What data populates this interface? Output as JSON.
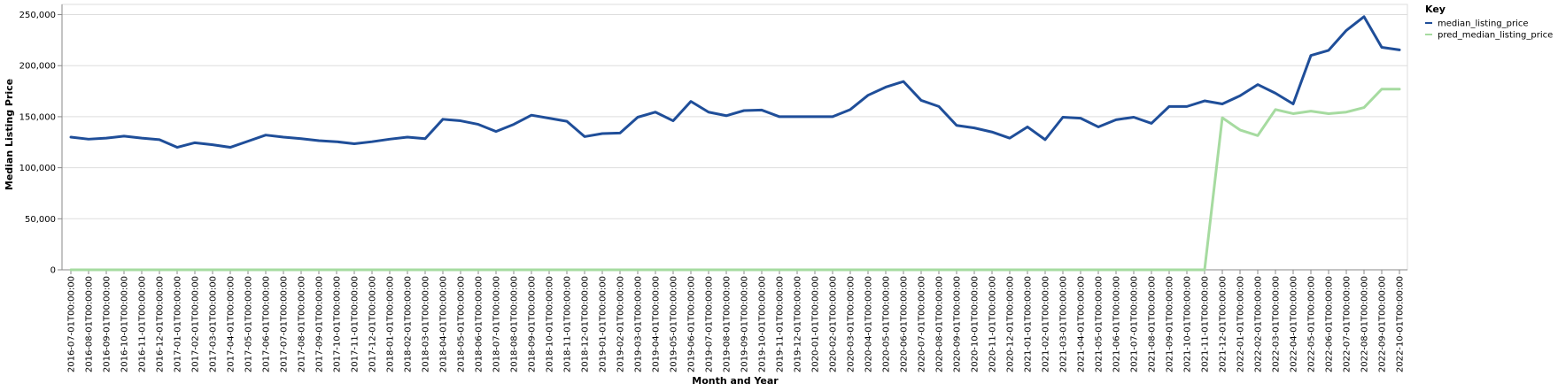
{
  "chart_data": {
    "type": "line",
    "xlabel": "Month and Year",
    "ylabel": "Median Listing Price",
    "ylim": [
      0,
      260000
    ],
    "yticks": [
      0,
      50000,
      100000,
      150000,
      200000,
      250000
    ],
    "grid": true,
    "legend": {
      "title": "Key",
      "placement": "top-right"
    },
    "x": [
      "2016-07-01T00:00:00",
      "2016-08-01T00:00:00",
      "2016-09-01T00:00:00",
      "2016-10-01T00:00:00",
      "2016-11-01T00:00:00",
      "2016-12-01T00:00:00",
      "2017-01-01T00:00:00",
      "2017-02-01T00:00:00",
      "2017-03-01T00:00:00",
      "2017-04-01T00:00:00",
      "2017-05-01T00:00:00",
      "2017-06-01T00:00:00",
      "2017-07-01T00:00:00",
      "2017-08-01T00:00:00",
      "2017-09-01T00:00:00",
      "2017-10-01T00:00:00",
      "2017-11-01T00:00:00",
      "2017-12-01T00:00:00",
      "2018-01-01T00:00:00",
      "2018-02-01T00:00:00",
      "2018-03-01T00:00:00",
      "2018-04-01T00:00:00",
      "2018-05-01T00:00:00",
      "2018-06-01T00:00:00",
      "2018-07-01T00:00:00",
      "2018-08-01T00:00:00",
      "2018-09-01T00:00:00",
      "2018-10-01T00:00:00",
      "2018-11-01T00:00:00",
      "2018-12-01T00:00:00",
      "2019-01-01T00:00:00",
      "2019-02-01T00:00:00",
      "2019-03-01T00:00:00",
      "2019-04-01T00:00:00",
      "2019-05-01T00:00:00",
      "2019-06-01T00:00:00",
      "2019-07-01T00:00:00",
      "2019-08-01T00:00:00",
      "2019-09-01T00:00:00",
      "2019-10-01T00:00:00",
      "2019-11-01T00:00:00",
      "2019-12-01T00:00:00",
      "2020-01-01T00:00:00",
      "2020-02-01T00:00:00",
      "2020-03-01T00:00:00",
      "2020-04-01T00:00:00",
      "2020-05-01T00:00:00",
      "2020-06-01T00:00:00",
      "2020-07-01T00:00:00",
      "2020-08-01T00:00:00",
      "2020-09-01T00:00:00",
      "2020-10-01T00:00:00",
      "2020-11-01T00:00:00",
      "2020-12-01T00:00:00",
      "2021-01-01T00:00:00",
      "2021-02-01T00:00:00",
      "2021-03-01T00:00:00",
      "2021-04-01T00:00:00",
      "2021-05-01T00:00:00",
      "2021-06-01T00:00:00",
      "2021-07-01T00:00:00",
      "2021-08-01T00:00:00",
      "2021-09-01T00:00:00",
      "2021-10-01T00:00:00",
      "2021-11-01T00:00:00",
      "2021-12-01T00:00:00",
      "2022-01-01T00:00:00",
      "2022-02-01T00:00:00",
      "2022-03-01T00:00:00",
      "2022-04-01T00:00:00",
      "2022-05-01T00:00:00",
      "2022-06-01T00:00:00",
      "2022-07-01T00:00:00",
      "2022-08-01T00:00:00",
      "2022-09-01T00:00:00",
      "2022-10-01T00:00:00"
    ],
    "series": [
      {
        "name": "median_listing_price",
        "color": "#1f4e99",
        "values": [
          130000,
          128000,
          129000,
          131000,
          129000,
          127500,
          120000,
          124500,
          122500,
          120000,
          126000,
          132000,
          130000,
          128500,
          126500,
          125500,
          123500,
          125500,
          128000,
          130000,
          128500,
          147500,
          146000,
          142500,
          135500,
          142500,
          151500,
          148500,
          145500,
          130500,
          133500,
          134000,
          149500,
          154500,
          146000,
          165000,
          154500,
          151000,
          156000,
          156500,
          150000,
          150000,
          150000,
          150000,
          157000,
          171000,
          179000,
          184500,
          166000,
          160000,
          141500,
          139000,
          135000,
          129000,
          140000,
          127500,
          149500,
          148500,
          140000,
          147000,
          149500,
          143500,
          160000,
          160000,
          165500,
          162500,
          170500,
          181500,
          173000,
          162500,
          210000,
          215000,
          234500,
          248000,
          218000,
          215500
        ]
      },
      {
        "name": "pred_median_listing_price",
        "color": "#a6dba0",
        "values": [
          0,
          0,
          0,
          0,
          0,
          0,
          0,
          0,
          0,
          0,
          0,
          0,
          0,
          0,
          0,
          0,
          0,
          0,
          0,
          0,
          0,
          0,
          0,
          0,
          0,
          0,
          0,
          0,
          0,
          0,
          0,
          0,
          0,
          0,
          0,
          0,
          0,
          0,
          0,
          0,
          0,
          0,
          0,
          0,
          0,
          0,
          0,
          0,
          0,
          0,
          0,
          0,
          0,
          0,
          0,
          0,
          0,
          0,
          0,
          0,
          0,
          0,
          0,
          0,
          0,
          149000,
          137000,
          131500,
          157000,
          153000,
          155500,
          153000,
          154500,
          159000,
          177000,
          177000
        ]
      }
    ]
  }
}
